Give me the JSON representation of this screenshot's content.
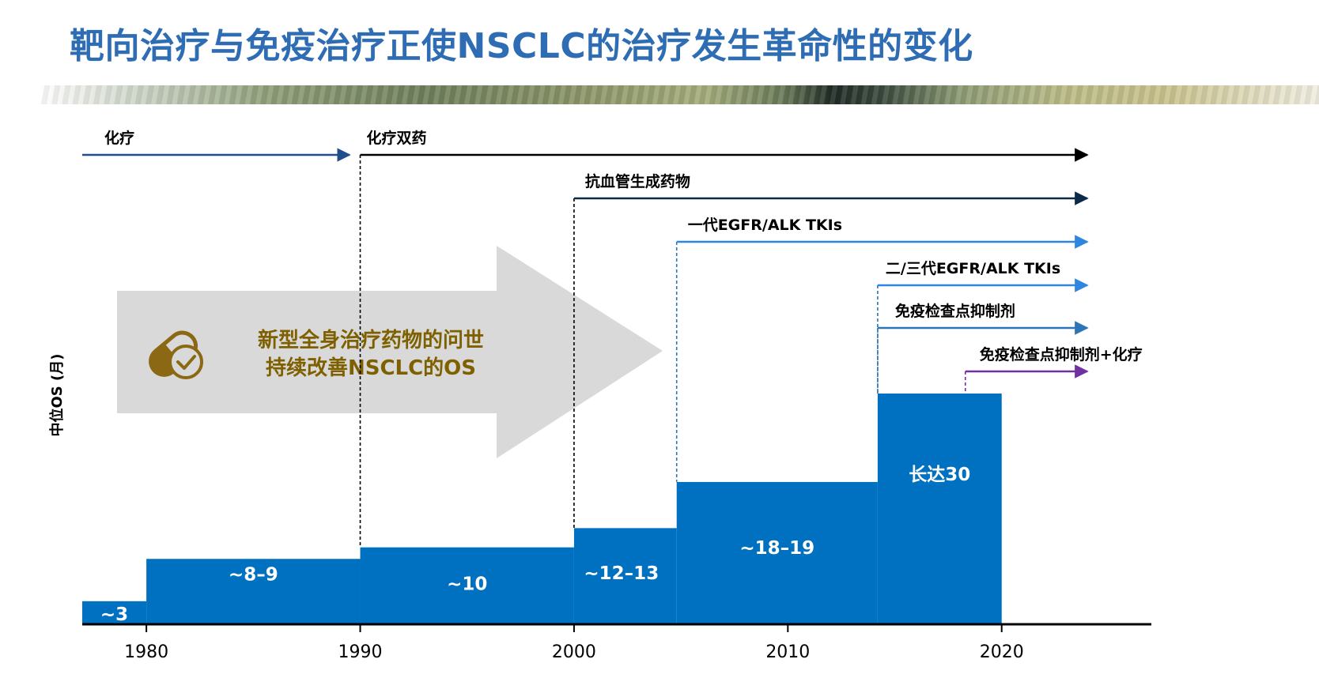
{
  "title": "靶向治疗与免疫治疗正使NSCLC的治疗发生革命性的变化",
  "colors": {
    "title": "#2e6db4",
    "bar": "#0070c0",
    "callout": "#7f6000",
    "arrow_fill": "#d9d9d9",
    "pill_icon": "#8b6914"
  },
  "callout": {
    "line1": "新型全身治疗药物的问世",
    "line2": "持续改善NSCLC的OS",
    "icon": "pill-check-icon"
  },
  "chart_data": {
    "type": "step-bar",
    "title": "",
    "ylabel": "中位OS (月)",
    "xlabel": "",
    "xlim": [
      1977,
      2027
    ],
    "x_ticks": [
      1980,
      1990,
      2000,
      2010,
      2020
    ],
    "x_tick_labels": [
      "1980",
      "1990",
      "2000",
      "2010",
      "2020"
    ],
    "ylim": [
      0,
      30
    ],
    "grid": false,
    "segments": [
      {
        "x_start": 1977,
        "x_end": 1980,
        "value": 3,
        "label": "~3"
      },
      {
        "x_start": 1980,
        "x_end": 1990,
        "value": 8.5,
        "label": "~8–9"
      },
      {
        "x_start": 1990,
        "x_end": 2000,
        "value": 10,
        "label": "~10"
      },
      {
        "x_start": 2000,
        "x_end": 2004.8,
        "value": 12.5,
        "label": "~12–13"
      },
      {
        "x_start": 2004.8,
        "x_end": 2014.2,
        "value": 18.5,
        "label": "~18–19"
      },
      {
        "x_start": 2014.2,
        "x_end": 2020,
        "value": 30,
        "label": "长达30"
      }
    ],
    "therapies": [
      {
        "name": "化疗",
        "start": 1977,
        "end": 1989.5,
        "color": "#1f4e8c",
        "drop": false
      },
      {
        "name": "化疗双药",
        "start": 1990,
        "end": 2024,
        "color": "#000000",
        "drop": true,
        "drop_style": "dashed-black"
      },
      {
        "name": "抗血管生成药物",
        "start": 2000,
        "end": 2024,
        "color": "#0b2a4a",
        "drop": true,
        "drop_style": "dashed-black"
      },
      {
        "name": "一代EGFR/ALK TKIs",
        "start": 2004.8,
        "end": 2024,
        "color": "#2e86de",
        "drop": true,
        "drop_style": "dashed-blue"
      },
      {
        "name": "二/三代EGFR/ALK TKIs",
        "start": 2014.2,
        "end": 2024,
        "color": "#2e86de",
        "drop": true,
        "drop_style": "dashed-blue"
      },
      {
        "name": "免疫检查点抑制剂",
        "start": 2014.2,
        "end": 2024,
        "color": "#2e75b6",
        "drop": true,
        "drop_style": "dashed-blue"
      },
      {
        "name": "免疫检查点抑制剂+化疗",
        "start": 2018.3,
        "end": 2024,
        "color": "#7030a0",
        "drop": true,
        "drop_style": "dashed-purple"
      }
    ]
  }
}
